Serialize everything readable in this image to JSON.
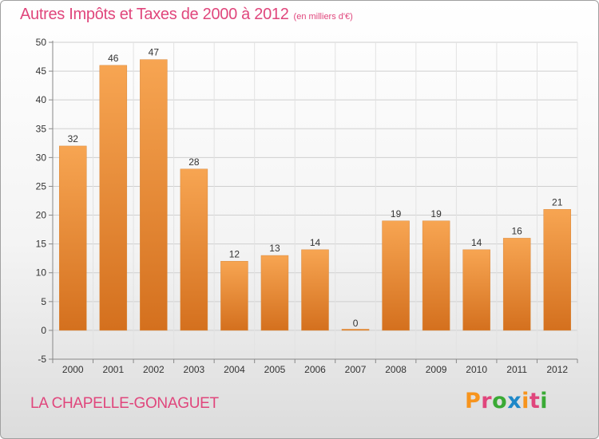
{
  "header": {
    "title": "Autres Impôts et Taxes de 2000 à 2012",
    "unit": "(en milliers d'€)"
  },
  "footer": {
    "commune": "LA CHAPELLE-GONAGUET",
    "brand": "Proxiti",
    "brand_colors": [
      "#f7941d",
      "#e0467c",
      "#3aaa35",
      "#1e88c8",
      "#f7941d",
      "#e0467c",
      "#3aaa35"
    ]
  },
  "chart_data": {
    "type": "bar",
    "title": "Autres Impôts et Taxes de 2000 à 2012",
    "subtitle": "(en milliers d'€)",
    "xlabel": "",
    "ylabel": "",
    "categories": [
      "2000",
      "2001",
      "2002",
      "2003",
      "2004",
      "2005",
      "2006",
      "2007",
      "2008",
      "2009",
      "2010",
      "2011",
      "2012"
    ],
    "values": [
      32,
      46,
      47,
      28,
      12,
      13,
      14,
      0,
      19,
      19,
      14,
      16,
      21
    ],
    "ylim": [
      -5,
      50
    ],
    "yticks": [
      -5,
      0,
      5,
      10,
      15,
      20,
      25,
      30,
      35,
      40,
      45,
      50
    ],
    "grid": true,
    "bar_color": "#f0943f",
    "legend": "none"
  }
}
